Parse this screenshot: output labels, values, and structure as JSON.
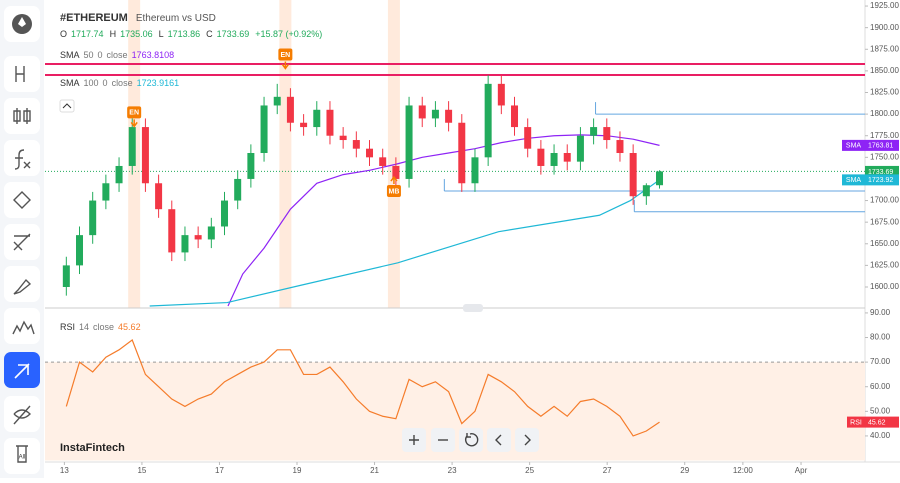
{
  "toolbar_label": "All",
  "watermark": "InstaFintech",
  "chart_data": [
    {
      "type": "candlestick",
      "title": "#ETHEREUM",
      "subtitle": "Ethereum vs USD",
      "ohlc_labels": [
        "O",
        "H",
        "L",
        "C"
      ],
      "ohlc_values": [
        1717.74,
        1735.06,
        1713.86,
        1733.69
      ],
      "change": "+15.87 (+0.92%)",
      "x": [
        13.05,
        13.39,
        13.73,
        14.07,
        14.41,
        14.75,
        15.09,
        15.43,
        15.77,
        16.11,
        16.45,
        16.79,
        17.13,
        17.47,
        17.81,
        18.15,
        18.49,
        18.83,
        19.17,
        19.51,
        19.85,
        20.19,
        20.53,
        20.87,
        21.21,
        21.55,
        21.89,
        22.23,
        22.57,
        22.91,
        23.25,
        23.59,
        23.93,
        24.27,
        24.61,
        24.95,
        25.29,
        25.63,
        25.97,
        26.31,
        26.65,
        26.99,
        27.33,
        27.67,
        28.01,
        28.35
      ],
      "open": [
        1600,
        1625,
        1660,
        1700,
        1720,
        1740,
        1785,
        1720,
        1690,
        1640,
        1660,
        1655,
        1670,
        1700,
        1725,
        1755,
        1810,
        1820,
        1790,
        1785,
        1805,
        1775,
        1770,
        1760,
        1750,
        1740,
        1725,
        1810,
        1795,
        1805,
        1790,
        1720,
        1750,
        1835,
        1810,
        1785,
        1760,
        1740,
        1755,
        1745,
        1775,
        1785,
        1770,
        1755,
        1705,
        1717.74
      ],
      "high": [
        1635,
        1670,
        1710,
        1730,
        1750,
        1795,
        1795,
        1730,
        1700,
        1670,
        1670,
        1680,
        1710,
        1735,
        1765,
        1820,
        1835,
        1830,
        1800,
        1815,
        1815,
        1785,
        1780,
        1770,
        1760,
        1750,
        1820,
        1820,
        1815,
        1815,
        1800,
        1760,
        1845,
        1845,
        1820,
        1795,
        1770,
        1765,
        1765,
        1785,
        1795,
        1795,
        1780,
        1765,
        1720,
        1735.06
      ],
      "low": [
        1590,
        1615,
        1650,
        1690,
        1710,
        1730,
        1710,
        1680,
        1630,
        1630,
        1645,
        1645,
        1660,
        1690,
        1715,
        1745,
        1800,
        1780,
        1775,
        1775,
        1765,
        1760,
        1750,
        1740,
        1730,
        1715,
        1715,
        1785,
        1785,
        1780,
        1710,
        1710,
        1740,
        1800,
        1775,
        1750,
        1730,
        1730,
        1735,
        1735,
        1765,
        1760,
        1745,
        1695,
        1695,
        1713.86
      ],
      "close": [
        1625,
        1660,
        1700,
        1720,
        1740,
        1785,
        1720,
        1690,
        1640,
        1660,
        1655,
        1670,
        1700,
        1725,
        1755,
        1810,
        1820,
        1790,
        1785,
        1805,
        1775,
        1770,
        1760,
        1750,
        1740,
        1725,
        1810,
        1795,
        1805,
        1790,
        1720,
        1750,
        1835,
        1810,
        1785,
        1760,
        1740,
        1755,
        1745,
        1775,
        1785,
        1770,
        1755,
        1705,
        1717.74,
        1733.69
      ],
      "up_color": "#22ab5c",
      "down_color": "#f23645",
      "indicators": [
        {
          "name": "SMA",
          "params": [
            "50",
            "0",
            "close"
          ],
          "value": 1763.8108,
          "color": "#8e24f5",
          "x": [
            17.22,
            17.6,
            18.15,
            18.83,
            19.51,
            20.19,
            20.87,
            21.55,
            22.23,
            22.91,
            23.59,
            24.27,
            24.95,
            25.63,
            26.31,
            26.99,
            27.67,
            28.35
          ],
          "values": [
            1578,
            1615,
            1645,
            1690,
            1720,
            1730,
            1735,
            1742,
            1750,
            1755,
            1760,
            1767,
            1772,
            1775,
            1776,
            1775,
            1771,
            1763.81
          ]
        },
        {
          "name": "SMA",
          "params": [
            "100",
            "0",
            "close"
          ],
          "value": 1723.9161,
          "color": "#1fb8d6",
          "x": [
            15.2,
            17.2,
            19.1,
            21.6,
            24.2,
            26.8,
            27.6,
            28.35
          ],
          "values": [
            1578,
            1582,
            1602,
            1628,
            1664,
            1683,
            1700,
            1723.92
          ]
        }
      ],
      "tags": [
        {
          "label": "SMA",
          "value": 1763.81,
          "color": "#8e24f5"
        },
        {
          "value": 1733.69,
          "color": "#22ab5c",
          "line": "dotted"
        },
        {
          "label": "SMA",
          "value": 1723.92,
          "color": "#1fb8d6"
        }
      ],
      "levels": [
        {
          "value": 1857.9,
          "color": "#e91e63"
        },
        {
          "value": 1845.2,
          "color": "#e91e63"
        },
        {
          "value": 1800,
          "from": 26.7,
          "color": "#64a6e0"
        },
        {
          "value": 1711,
          "from": 22.8,
          "color": "#64a6e0"
        },
        {
          "value": 1687,
          "from": 27.7,
          "color": "#64a6e0"
        }
      ],
      "annotations": [
        {
          "label": "EN",
          "x": 14.8,
          "y": 1802,
          "color": "#f57c00",
          "position": "above"
        },
        {
          "label": "EN",
          "x": 18.7,
          "y": 1869,
          "color": "#f57c00",
          "position": "above"
        },
        {
          "label": "MB",
          "x": 21.5,
          "y": 1711,
          "color": "#f57c00",
          "position": "below"
        }
      ],
      "xlim": [
        12.5,
        33.65
      ],
      "ylim": [
        1575.7,
        1932
      ],
      "yticks": [
        {
          "value": 1600,
          "label": "1600.00"
        },
        {
          "value": 1625,
          "label": "1625.00"
        },
        {
          "value": 1650,
          "label": "1650.00"
        },
        {
          "value": 1675,
          "label": "1675.00"
        },
        {
          "value": 1700,
          "label": "1700.00"
        },
        {
          "value": 1725,
          "label": "1725.00"
        },
        {
          "value": 1750,
          "label": "1750.00"
        },
        {
          "value": 1775,
          "label": "1775.00"
        },
        {
          "value": 1800,
          "label": "1800.00"
        },
        {
          "value": 1825,
          "label": "1825.00"
        },
        {
          "value": 1850,
          "label": "1850.00"
        },
        {
          "value": 1875,
          "label": "1875.00"
        },
        {
          "value": 1900,
          "label": "1900.00"
        },
        {
          "value": 1925,
          "label": "1925.00"
        }
      ]
    },
    {
      "type": "line",
      "name": "RSI",
      "params": [
        "14",
        "close"
      ],
      "value": 45.62,
      "color": "#f57c2b",
      "x": [
        13.05,
        13.39,
        13.73,
        14.07,
        14.41,
        14.75,
        15.09,
        15.43,
        15.77,
        16.11,
        16.45,
        16.79,
        17.13,
        17.47,
        17.81,
        18.15,
        18.49,
        18.83,
        19.17,
        19.51,
        19.85,
        20.19,
        20.53,
        20.87,
        21.21,
        21.55,
        21.89,
        22.23,
        22.57,
        22.91,
        23.25,
        23.59,
        23.93,
        24.27,
        24.61,
        24.95,
        25.29,
        25.63,
        25.97,
        26.31,
        26.65,
        26.99,
        27.33,
        27.67,
        28.01,
        28.35
      ],
      "values": [
        52,
        70,
        66,
        72,
        75,
        79,
        65,
        60,
        55,
        52,
        55,
        57,
        62,
        65,
        68,
        70,
        75,
        75,
        65,
        65,
        68,
        62,
        55,
        50,
        48,
        47,
        63,
        60,
        62,
        58,
        45,
        50,
        65,
        62,
        58,
        52,
        48,
        52,
        48,
        54,
        55,
        52,
        48,
        40,
        42,
        45.62
      ],
      "level": 70,
      "band": [
        30,
        70
      ],
      "band_color": "#fff0e6",
      "tag": {
        "label": "RSI",
        "color": "#f23645"
      },
      "xlim": [
        12.5,
        33.65
      ],
      "ylim": [
        29.4,
        92
      ],
      "yticks": [
        {
          "value": 40,
          "label": "40.00"
        },
        {
          "value": 50,
          "label": "50.00"
        },
        {
          "value": 60,
          "label": "60.00"
        },
        {
          "value": 70,
          "label": "70.00"
        },
        {
          "value": 80,
          "label": "80.00"
        },
        {
          "value": 90,
          "label": "90.00"
        }
      ],
      "xticks": [
        13,
        15,
        17,
        19,
        21,
        23,
        25,
        27,
        29,
        {
          "value": 30.5,
          "label": "12:00"
        },
        {
          "value": 32,
          "label": "Apr"
        }
      ]
    }
  ]
}
